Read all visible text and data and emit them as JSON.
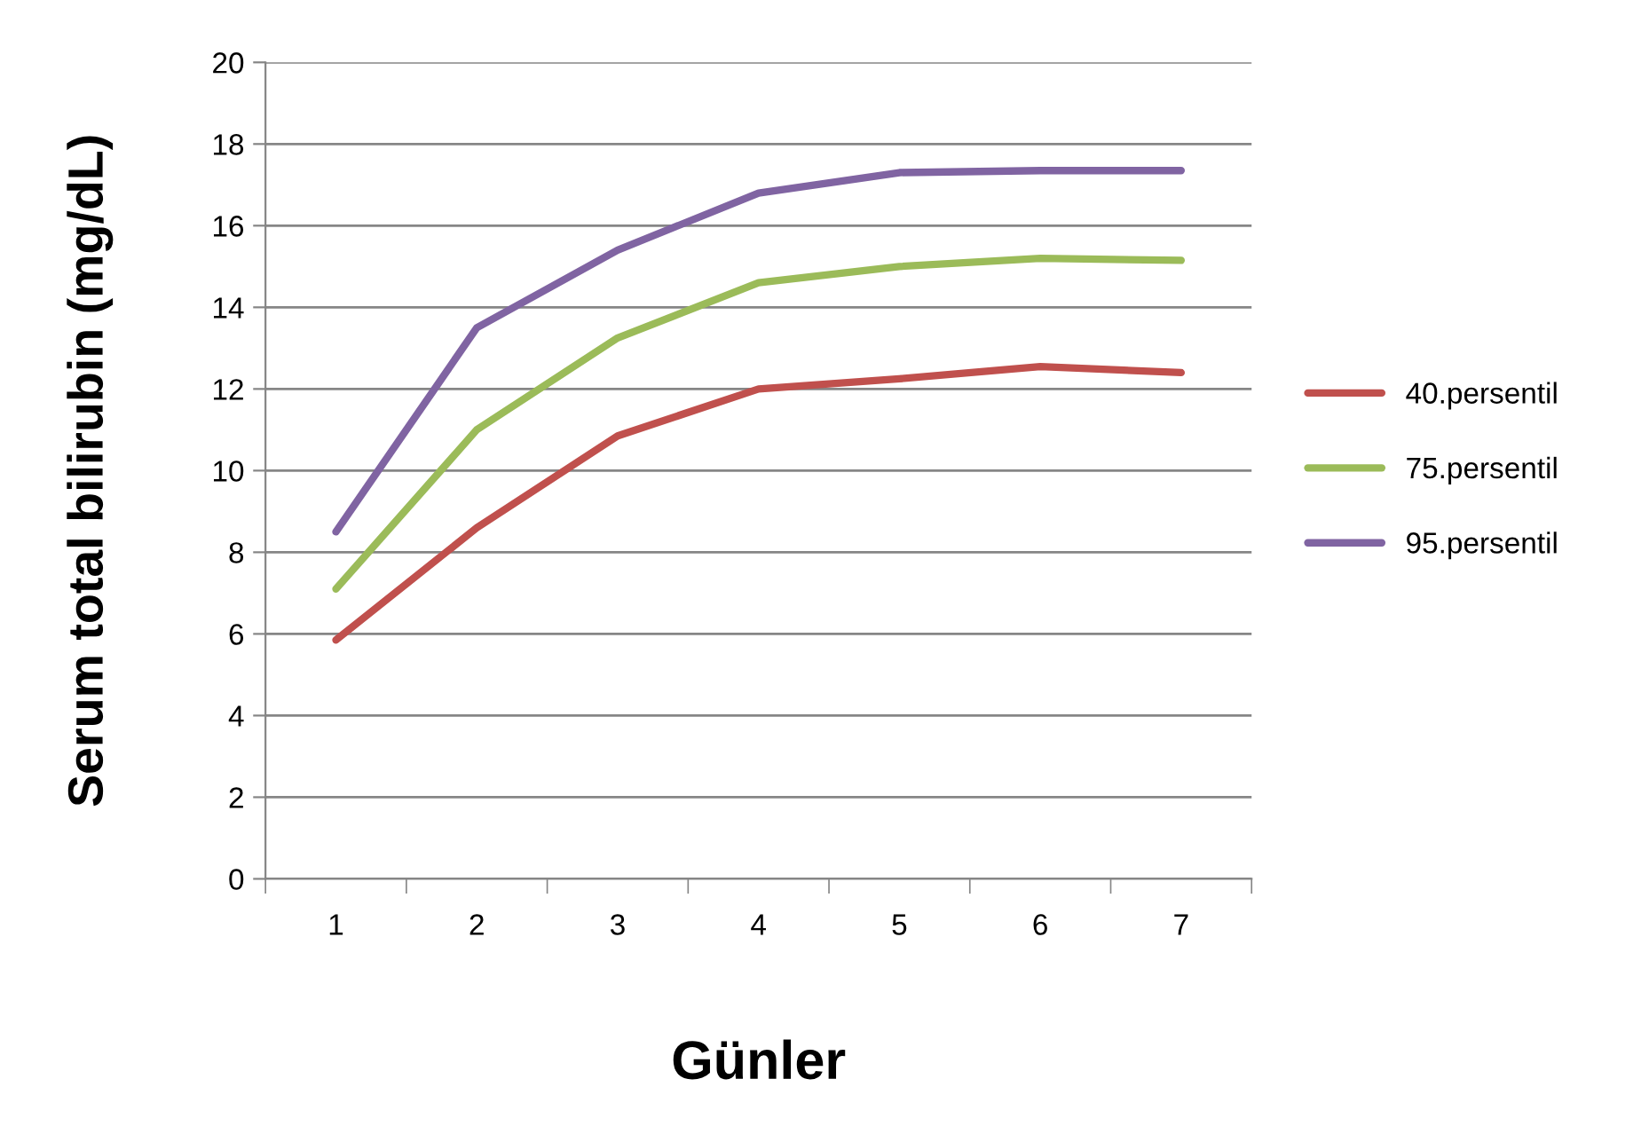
{
  "chart_data": {
    "type": "line",
    "xlabel": "Günler",
    "ylabel": "Serum total bilirubin (mg/dL)",
    "categories": [
      "1",
      "2",
      "3",
      "4",
      "5",
      "6",
      "7"
    ],
    "series": [
      {
        "name": "40.persentil",
        "color": "#c0504d",
        "values": [
          5.85,
          8.6,
          10.85,
          12.0,
          12.25,
          12.55,
          12.4
        ]
      },
      {
        "name": "75.persentil",
        "color": "#9bbb59",
        "values": [
          7.1,
          11.0,
          13.25,
          14.6,
          15.0,
          15.2,
          15.15
        ]
      },
      {
        "name": "95.persentil",
        "color": "#8064a2",
        "values": [
          8.5,
          13.5,
          15.4,
          16.8,
          17.3,
          17.35,
          17.35
        ]
      }
    ],
    "ylim": [
      0,
      20
    ],
    "yticks": [
      0,
      2,
      4,
      6,
      8,
      10,
      12,
      14,
      16,
      18,
      20
    ],
    "grid": "y",
    "legend": "right",
    "marker": "none",
    "line_style": "solid"
  }
}
